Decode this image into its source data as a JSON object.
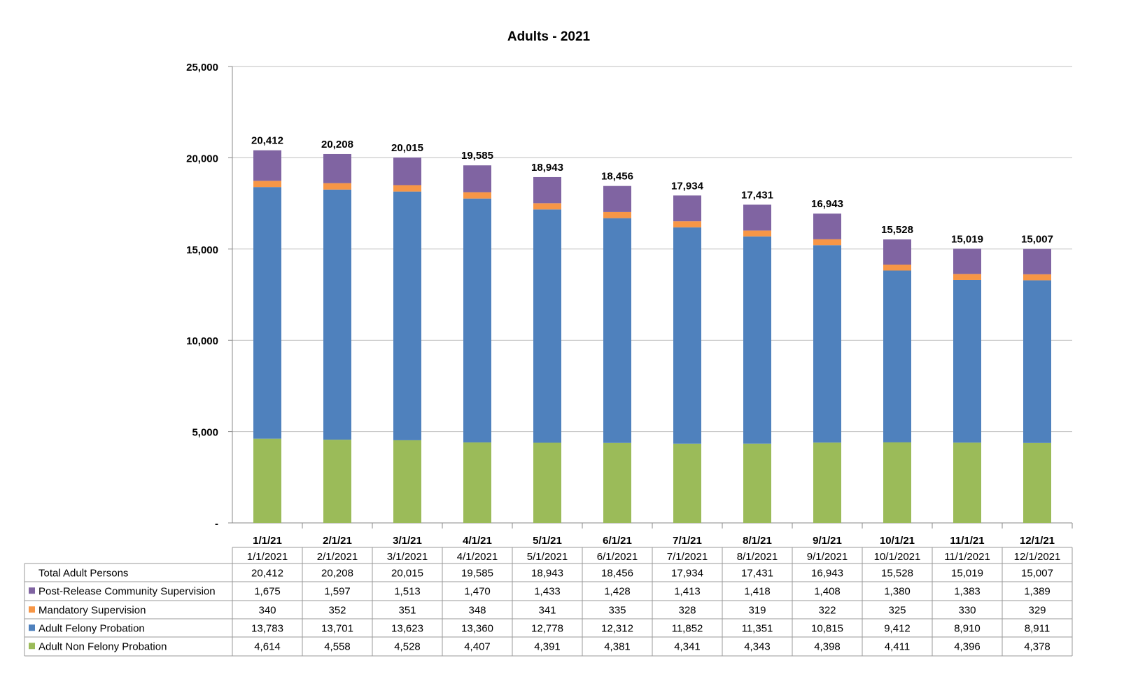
{
  "chart_data": {
    "type": "bar",
    "stacked": true,
    "title": "Adults - 2021",
    "categories": [
      "1/1/21",
      "2/1/21",
      "3/1/21",
      "4/1/21",
      "5/1/21",
      "6/1/21",
      "7/1/21",
      "8/1/21",
      "9/1/21",
      "10/1/21",
      "11/1/21",
      "12/1/21"
    ],
    "table_dates": [
      "1/1/2021",
      "2/1/2021",
      "3/1/2021",
      "4/1/2021",
      "5/1/2021",
      "6/1/2021",
      "7/1/2021",
      "8/1/2021",
      "9/1/2021",
      "10/1/2021",
      "11/1/2021",
      "12/1/2021"
    ],
    "ylim": [
      0,
      25000
    ],
    "yticks": [
      0,
      5000,
      10000,
      15000,
      20000,
      25000
    ],
    "ytick_labels": [
      "-",
      "5,000",
      "10,000",
      "15,000",
      "20,000",
      "25,000"
    ],
    "grid": true,
    "legend": "data-table",
    "total": {
      "name": "Total Adult Persons",
      "values": [
        20412,
        20208,
        20015,
        19585,
        18943,
        18456,
        17934,
        17431,
        16943,
        15528,
        15019,
        15007
      ]
    },
    "series": [
      {
        "name": "Adult Non Felony Probation",
        "color": "#9BBB59",
        "values": [
          4614,
          4558,
          4528,
          4407,
          4391,
          4381,
          4341,
          4343,
          4398,
          4411,
          4396,
          4378
        ]
      },
      {
        "name": "Adult Felony Probation",
        "color": "#4F81BD",
        "values": [
          13783,
          13701,
          13623,
          13360,
          12778,
          12312,
          11852,
          11351,
          10815,
          9412,
          8910,
          8911
        ]
      },
      {
        "name": "Mandatory Supervision",
        "color": "#F79646",
        "values": [
          340,
          352,
          351,
          348,
          341,
          335,
          328,
          319,
          322,
          325,
          330,
          329
        ]
      },
      {
        "name": "Post-Release Community Supervision",
        "color": "#8064A2",
        "values": [
          1675,
          1597,
          1513,
          1470,
          1433,
          1428,
          1413,
          1418,
          1408,
          1380,
          1383,
          1389
        ]
      }
    ]
  }
}
